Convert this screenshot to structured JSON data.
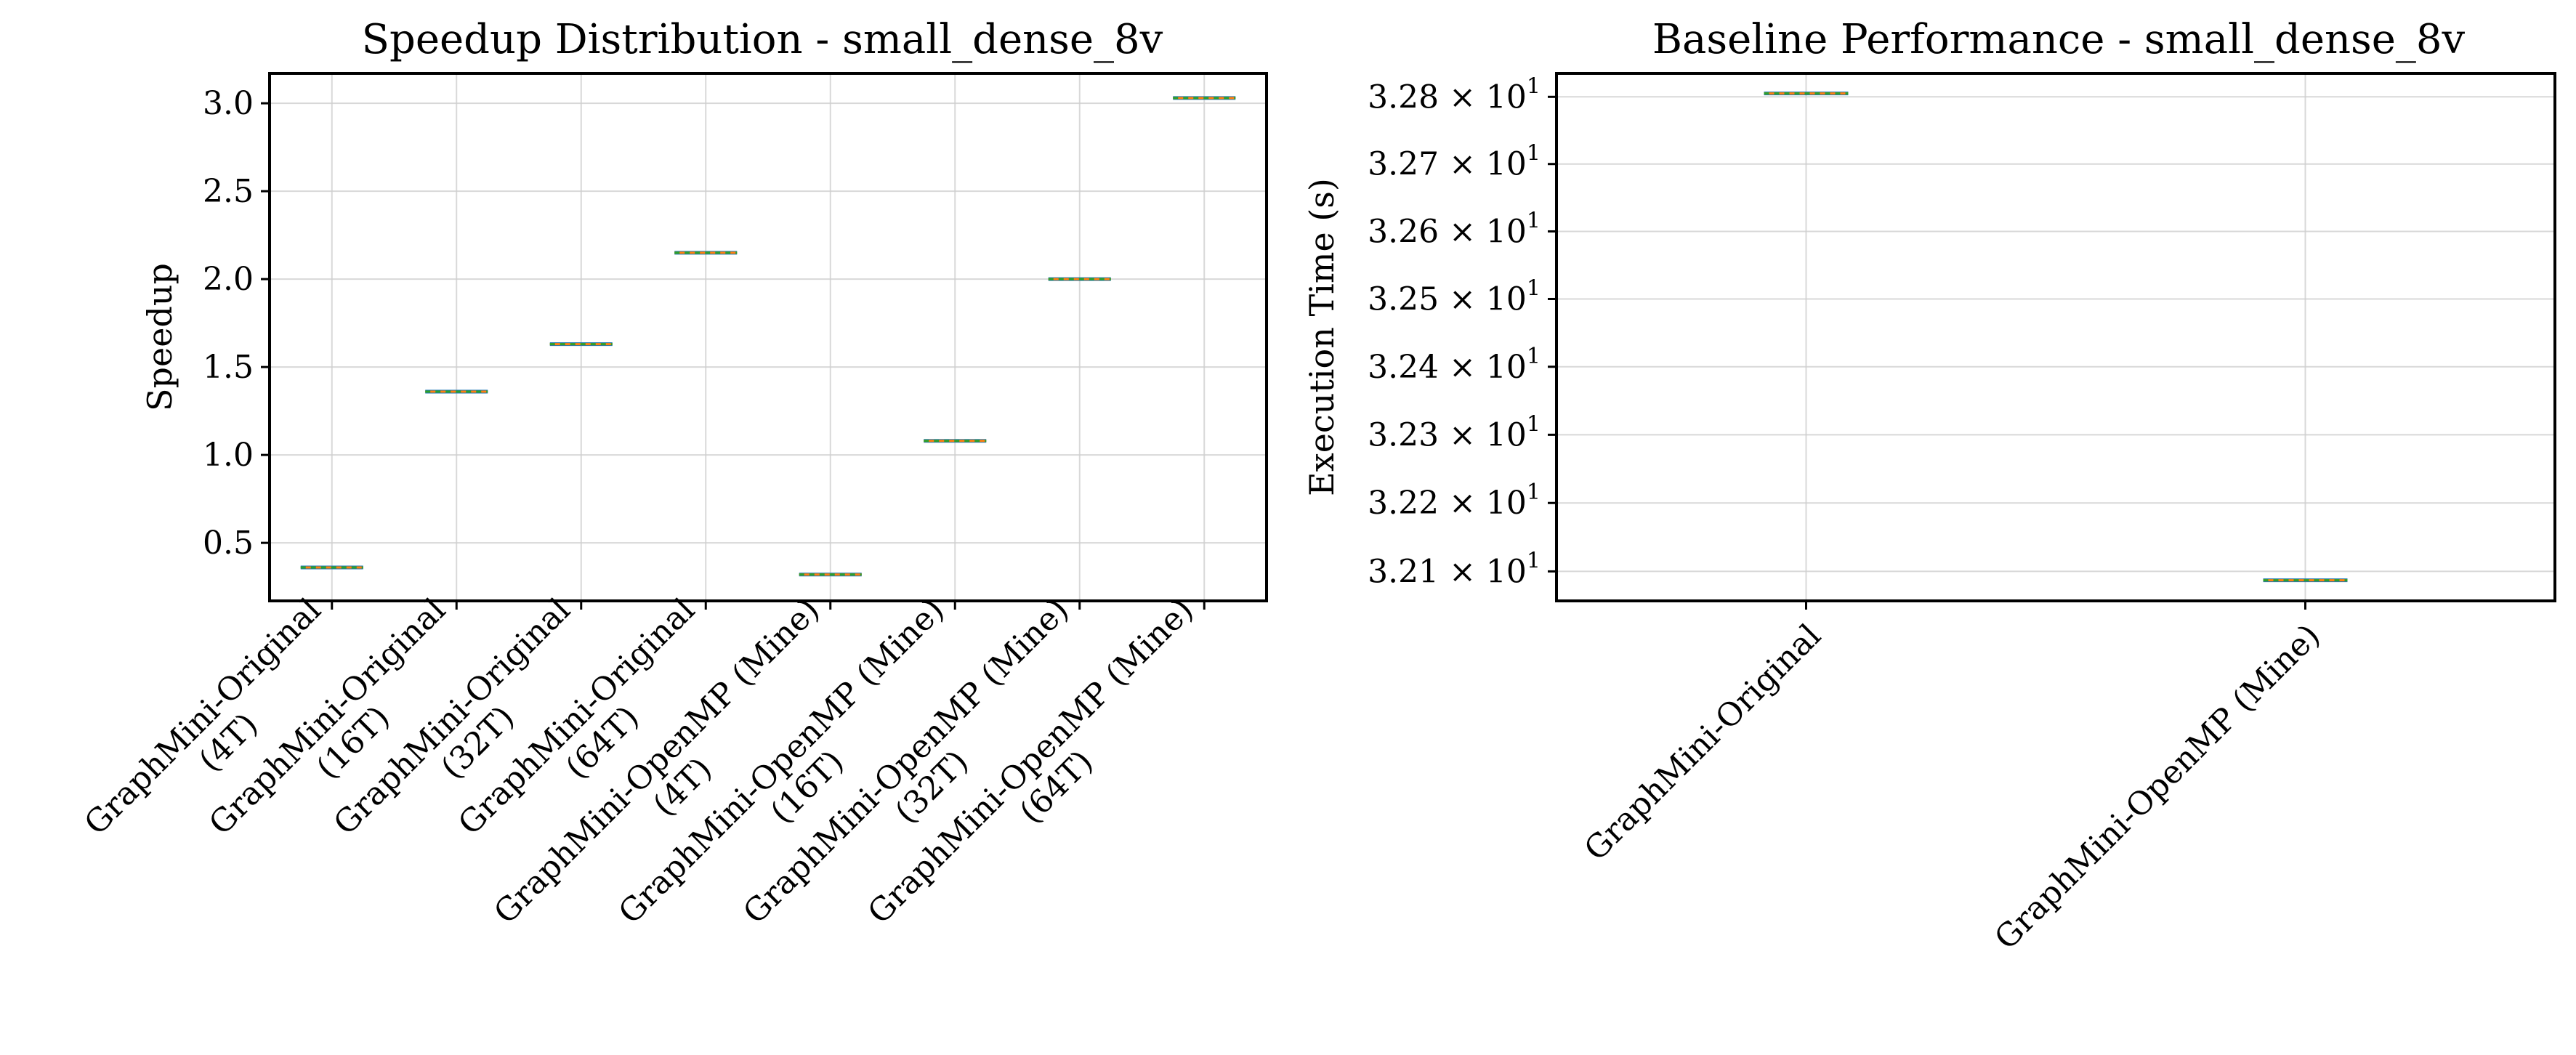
{
  "chart_data": [
    {
      "type": "box",
      "title": "Speedup Distribution - small_dense_8v",
      "xlabel": "",
      "ylabel": "Speedup",
      "categories": [
        "GraphMini-Original\n(4T)",
        "GraphMini-Original\n(16T)",
        "GraphMini-Original\n(32T)",
        "GraphMini-Original\n(64T)",
        "GraphMini-OpenMP (Mine)\n(4T)",
        "GraphMini-OpenMP (Mine)\n(16T)",
        "GraphMini-OpenMP (Mine)\n(32T)",
        "GraphMini-OpenMP (Mine)\n(64T)"
      ],
      "values": [
        0.36,
        1.36,
        1.63,
        2.15,
        0.32,
        1.08,
        2.0,
        3.03
      ],
      "ylim": [
        0.17,
        3.17
      ],
      "yticks": [
        0.5,
        1.0,
        1.5,
        2.0,
        2.5,
        3.0
      ],
      "ytick_labels": [
        "0.5",
        "1.0",
        "1.5",
        "2.0",
        "2.5",
        "3.0"
      ],
      "yscale": "linear",
      "grid": true,
      "colors": {
        "box": "#1f77b4",
        "median": "#ff7f0e",
        "mean": "#2ca02c",
        "grid": "#cfcfcf"
      }
    },
    {
      "type": "box",
      "title": "Baseline Performance - small_dense_8v",
      "xlabel": "",
      "ylabel": "Execution Time (s)",
      "categories": [
        "GraphMini-Original",
        "GraphMini-OpenMP (Mine)"
      ],
      "values": [
        32.805,
        32.087
      ],
      "ylim": [
        32.057,
        32.835
      ],
      "yscale": "log",
      "yticks": [
        32.1,
        32.2,
        32.3,
        32.4,
        32.5,
        32.6,
        32.7,
        32.8
      ],
      "ytick_labels": [
        {
          "mantissa": "3.21",
          "base": "10",
          "exp": "1"
        },
        {
          "mantissa": "3.22",
          "base": "10",
          "exp": "1"
        },
        {
          "mantissa": "3.23",
          "base": "10",
          "exp": "1"
        },
        {
          "mantissa": "3.24",
          "base": "10",
          "exp": "1"
        },
        {
          "mantissa": "3.25",
          "base": "10",
          "exp": "1"
        },
        {
          "mantissa": "3.26",
          "base": "10",
          "exp": "1"
        },
        {
          "mantissa": "3.27",
          "base": "10",
          "exp": "1"
        },
        {
          "mantissa": "3.28",
          "base": "10",
          "exp": "1"
        }
      ],
      "grid": true,
      "colors": {
        "box": "#1f77b4",
        "median": "#ff7f0e",
        "mean": "#2ca02c",
        "grid": "#cfcfcf"
      }
    }
  ]
}
